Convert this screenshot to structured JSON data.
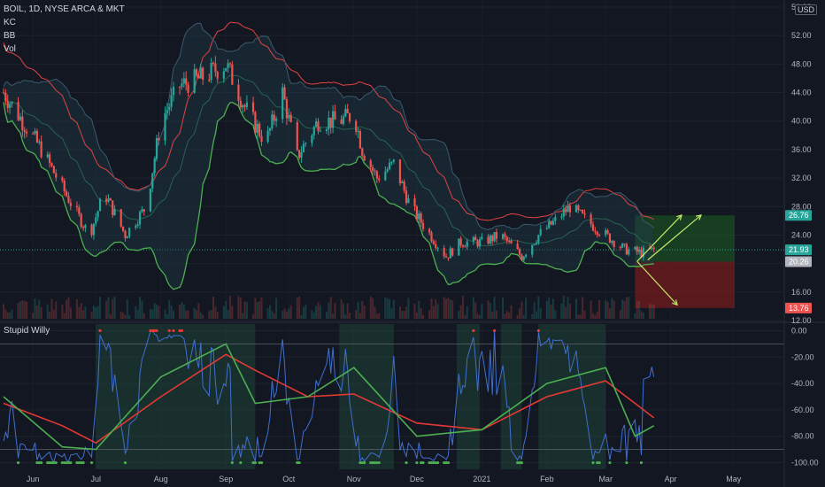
{
  "header": {
    "symbol_line": "BOIL, 1D, NYSE ARCA & MKT",
    "indicators": [
      "KC",
      "BB",
      "Vol"
    ],
    "currency": "USD"
  },
  "indicator_pane": {
    "title": "Stupid Willy"
  },
  "colors": {
    "background": "#131722",
    "up": "#26a69a",
    "down": "#ef5350",
    "keltner_band": "#e04343",
    "bollinger_band": "#4caf50",
    "bb_fill": "#1e3a48",
    "willy_line": "#3f6fd0",
    "signal_red": "#e53935",
    "signal_green": "#4caf50",
    "profit_zone": "#1b5e20",
    "loss_zone": "#8b1a1a"
  },
  "chart_data": [
    {
      "type": "candlestick",
      "x_labels": [
        "Jun",
        "Jul",
        "Aug",
        "Sep",
        "Oct",
        "Nov",
        "Dec",
        "2021",
        "Feb",
        "Mar",
        "Apr",
        "May"
      ],
      "y_ticks": [
        "56.00",
        "52.00",
        "48.00",
        "44.00",
        "40.00",
        "36.00",
        "32.00",
        "28.00",
        "24.00",
        "20.00",
        "16.00",
        "12.00"
      ],
      "ylim": [
        12,
        56
      ],
      "price_markers": [
        {
          "label": "26.76",
          "color": "#26a69a"
        },
        {
          "label": "21.93",
          "color": "#26a69a"
        },
        {
          "label": "20.26",
          "color": "#b2b5be"
        },
        {
          "label": "13.76",
          "color": "#ef5350"
        }
      ],
      "close_points": [
        {
          "date": "2020-05-18",
          "close": 44
        },
        {
          "date": "2020-06-05",
          "close": 36
        },
        {
          "date": "2020-06-20",
          "close": 28
        },
        {
          "date": "2020-06-28",
          "close": 24
        },
        {
          "date": "2020-07-05",
          "close": 30
        },
        {
          "date": "2020-07-15",
          "close": 24
        },
        {
          "date": "2020-07-25",
          "close": 28
        },
        {
          "date": "2020-08-01",
          "close": 40
        },
        {
          "date": "2020-08-10",
          "close": 45
        },
        {
          "date": "2020-08-20",
          "close": 46
        },
        {
          "date": "2020-09-01",
          "close": 48
        },
        {
          "date": "2020-09-10",
          "close": 42
        },
        {
          "date": "2020-09-20",
          "close": 37
        },
        {
          "date": "2020-09-28",
          "close": 44
        },
        {
          "date": "2020-10-05",
          "close": 35
        },
        {
          "date": "2020-10-15",
          "close": 40
        },
        {
          "date": "2020-10-25",
          "close": 40
        },
        {
          "date": "2020-11-01",
          "close": 41
        },
        {
          "date": "2020-11-05",
          "close": 36
        },
        {
          "date": "2020-11-12",
          "close": 32
        },
        {
          "date": "2020-11-20",
          "close": 34
        },
        {
          "date": "2020-11-28",
          "close": 28
        },
        {
          "date": "2020-12-05",
          "close": 25
        },
        {
          "date": "2020-12-15",
          "close": 21
        },
        {
          "date": "2020-12-22",
          "close": 23
        },
        {
          "date": "2021-01-01",
          "close": 23
        },
        {
          "date": "2021-01-10",
          "close": 24
        },
        {
          "date": "2021-01-20",
          "close": 21
        },
        {
          "date": "2021-01-28",
          "close": 24
        },
        {
          "date": "2021-02-05",
          "close": 26
        },
        {
          "date": "2021-02-12",
          "close": 28
        },
        {
          "date": "2021-02-20",
          "close": 26
        },
        {
          "date": "2021-03-01",
          "close": 24
        },
        {
          "date": "2021-03-10",
          "close": 22
        },
        {
          "date": "2021-03-18",
          "close": 21.5
        },
        {
          "date": "2021-03-24",
          "close": 21.93
        }
      ]
    },
    {
      "type": "line",
      "title": "Stupid Willy",
      "y_ticks": [
        "0.00",
        "-20.00",
        "-40.00",
        "-60.00",
        "-80.00",
        "-100.00"
      ],
      "ylim": [
        -105,
        5
      ],
      "x_labels": [
        "Jun",
        "Jul",
        "Aug",
        "Sep",
        "Oct",
        "Nov",
        "Dec",
        "2021",
        "Feb",
        "Mar",
        "Apr",
        "May"
      ],
      "series": [
        {
          "color": "#e53935",
          "points": [
            {
              "date": "2020-05-18",
              "value": -55
            },
            {
              "date": "2020-06-15",
              "value": -72
            },
            {
              "date": "2020-07-01",
              "value": -85
            },
            {
              "date": "2020-08-01",
              "value": -50
            },
            {
              "date": "2020-09-01",
              "value": -18
            },
            {
              "date": "2020-09-15",
              "value": -30
            },
            {
              "date": "2020-10-10",
              "value": -50
            },
            {
              "date": "2020-11-01",
              "value": -48
            },
            {
              "date": "2020-12-01",
              "value": -70
            },
            {
              "date": "2021-01-01",
              "value": -75
            },
            {
              "date": "2021-02-01",
              "value": -50
            },
            {
              "date": "2021-03-01",
              "value": -38
            },
            {
              "date": "2021-03-24",
              "value": -66
            }
          ]
        },
        {
          "color": "#4caf50",
          "points": [
            {
              "date": "2020-05-18",
              "value": -50
            },
            {
              "date": "2020-06-15",
              "value": -88
            },
            {
              "date": "2020-07-01",
              "value": -90
            },
            {
              "date": "2020-08-01",
              "value": -35
            },
            {
              "date": "2020-09-01",
              "value": -10
            },
            {
              "date": "2020-09-15",
              "value": -55
            },
            {
              "date": "2020-10-10",
              "value": -50
            },
            {
              "date": "2020-11-01",
              "value": -28
            },
            {
              "date": "2020-12-01",
              "value": -80
            },
            {
              "date": "2021-01-01",
              "value": -75
            },
            {
              "date": "2021-02-01",
              "value": -40
            },
            {
              "date": "2021-03-01",
              "value": -28
            },
            {
              "date": "2021-03-15",
              "value": -80
            },
            {
              "date": "2021-03-24",
              "value": -72
            }
          ]
        }
      ]
    }
  ]
}
